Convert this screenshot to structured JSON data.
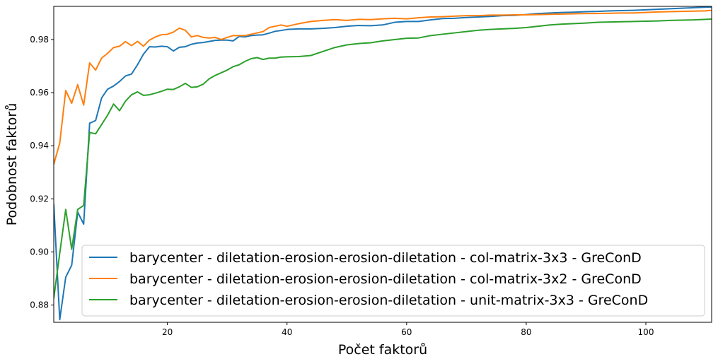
{
  "chart_data": {
    "type": "line",
    "title": "",
    "xlabel": "Počet faktorů",
    "ylabel": "Podobnost faktorů",
    "xlim": [
      1,
      111
    ],
    "ylim": [
      0.8735,
      0.9925
    ],
    "xticks": [
      20,
      40,
      60,
      80,
      100
    ],
    "yticks": [
      0.88,
      0.9,
      0.92,
      0.94,
      0.96,
      0.98
    ],
    "grid": false,
    "legend_position": "lower-right",
    "series": [
      {
        "name": "barycenter - diletation-erosion-erosion-diletation - col-matrix-3x3 - GreConD",
        "color": "#1f77b4",
        "x": [
          1,
          2,
          3,
          4,
          5,
          6,
          7,
          8,
          9,
          10,
          11,
          12,
          13,
          14,
          15,
          16,
          17,
          18,
          19,
          20,
          21,
          22,
          23,
          24,
          25,
          26,
          27,
          28,
          29,
          30,
          31,
          32,
          33,
          34,
          35,
          36,
          37,
          38,
          39,
          40,
          42,
          44,
          46,
          48,
          50,
          52,
          54,
          56,
          58,
          60,
          62,
          64,
          66,
          68,
          70,
          72,
          74,
          76,
          78,
          80,
          82,
          84,
          86,
          88,
          90,
          92,
          94,
          96,
          98,
          100,
          102,
          104,
          106,
          108,
          110,
          111
        ],
        "values": [
          0.918,
          0.8745,
          0.8905,
          0.895,
          0.915,
          0.9105,
          0.9485,
          0.9495,
          0.958,
          0.9613,
          0.9625,
          0.9642,
          0.9663,
          0.967,
          0.9705,
          0.9745,
          0.9773,
          0.9772,
          0.9775,
          0.9773,
          0.9757,
          0.9771,
          0.9773,
          0.9782,
          0.9787,
          0.9789,
          0.9793,
          0.9797,
          0.9798,
          0.9798,
          0.9795,
          0.9812,
          0.981,
          0.9815,
          0.9817,
          0.9818,
          0.9824,
          0.9831,
          0.9834,
          0.9838,
          0.984,
          0.984,
          0.9842,
          0.9845,
          0.985,
          0.9853,
          0.9852,
          0.9855,
          0.9865,
          0.9868,
          0.9868,
          0.9874,
          0.9879,
          0.988,
          0.9883,
          0.9885,
          0.9887,
          0.989,
          0.9891,
          0.9894,
          0.9898,
          0.99,
          0.9902,
          0.9903,
          0.9905,
          0.9906,
          0.9908,
          0.9909,
          0.991,
          0.9912,
          0.9914,
          0.9916,
          0.9918,
          0.992,
          0.9922,
          0.9922
        ]
      },
      {
        "name": "barycenter - diletation-erosion-erosion-diletation - col-matrix-3x2 - GreConD",
        "color": "#ff7f0e",
        "x": [
          1,
          2,
          3,
          4,
          5,
          6,
          7,
          8,
          9,
          10,
          11,
          12,
          13,
          14,
          15,
          16,
          17,
          18,
          19,
          20,
          21,
          22,
          23,
          24,
          25,
          26,
          27,
          28,
          29,
          30,
          31,
          32,
          33,
          34,
          35,
          36,
          37,
          38,
          39,
          40,
          42,
          44,
          46,
          48,
          50,
          52,
          54,
          56,
          58,
          60,
          62,
          64,
          66,
          68,
          70,
          72,
          74,
          76,
          78,
          80,
          82,
          84,
          86,
          88,
          90,
          92,
          94,
          96,
          98,
          100,
          102,
          104,
          106,
          108,
          110,
          111
        ],
        "values": [
          0.933,
          0.941,
          0.9608,
          0.956,
          0.963,
          0.9553,
          0.9712,
          0.9685,
          0.973,
          0.9748,
          0.977,
          0.9775,
          0.9792,
          0.9777,
          0.9793,
          0.9775,
          0.9798,
          0.981,
          0.9818,
          0.982,
          0.9828,
          0.9843,
          0.9835,
          0.981,
          0.9815,
          0.9808,
          0.9806,
          0.9808,
          0.98,
          0.9808,
          0.9815,
          0.9815,
          0.9815,
          0.982,
          0.9825,
          0.983,
          0.9845,
          0.985,
          0.9855,
          0.985,
          0.986,
          0.9868,
          0.9872,
          0.9875,
          0.9872,
          0.9876,
          0.9875,
          0.9878,
          0.988,
          0.9878,
          0.9882,
          0.9885,
          0.9886,
          0.9888,
          0.989,
          0.989,
          0.9892,
          0.9892,
          0.9893,
          0.9893,
          0.9894,
          0.9895,
          0.9896,
          0.9897,
          0.9898,
          0.9898,
          0.9899,
          0.99,
          0.99,
          0.9902,
          0.9904,
          0.9905,
          0.9906,
          0.9907,
          0.9908,
          0.991
        ]
      },
      {
        "name": "barycenter - diletation-erosion-erosion-diletation - unit-matrix-3x3 - GreConD",
        "color": "#2ca02c",
        "x": [
          1,
          2,
          3,
          4,
          5,
          6,
          7,
          8,
          9,
          10,
          11,
          12,
          13,
          14,
          15,
          16,
          17,
          18,
          19,
          20,
          21,
          22,
          23,
          24,
          25,
          26,
          27,
          28,
          29,
          30,
          31,
          32,
          33,
          34,
          35,
          36,
          37,
          38,
          39,
          40,
          42,
          44,
          46,
          48,
          50,
          52,
          54,
          56,
          58,
          60,
          62,
          64,
          66,
          68,
          70,
          72,
          74,
          76,
          78,
          80,
          82,
          84,
          86,
          88,
          90,
          92,
          94,
          96,
          98,
          100,
          102,
          104,
          106,
          108,
          110,
          111
        ],
        "values": [
          0.8825,
          0.8995,
          0.916,
          0.901,
          0.916,
          0.9175,
          0.945,
          0.9445,
          0.948,
          0.9515,
          0.9557,
          0.9532,
          0.9568,
          0.9592,
          0.9603,
          0.959,
          0.9592,
          0.9598,
          0.9605,
          0.9613,
          0.9612,
          0.9622,
          0.9635,
          0.962,
          0.9622,
          0.9632,
          0.9652,
          0.9665,
          0.9675,
          0.9685,
          0.9698,
          0.9705,
          0.9718,
          0.9728,
          0.9732,
          0.9725,
          0.973,
          0.973,
          0.9734,
          0.9735,
          0.9736,
          0.974,
          0.9755,
          0.977,
          0.978,
          0.9785,
          0.9788,
          0.9795,
          0.98,
          0.9805,
          0.9806,
          0.9815,
          0.982,
          0.9825,
          0.983,
          0.9835,
          0.9838,
          0.984,
          0.9842,
          0.9845,
          0.985,
          0.9855,
          0.9858,
          0.986,
          0.9862,
          0.9865,
          0.9866,
          0.9867,
          0.9868,
          0.9869,
          0.987,
          0.9872,
          0.9873,
          0.9874,
          0.9876,
          0.9877
        ]
      }
    ]
  }
}
